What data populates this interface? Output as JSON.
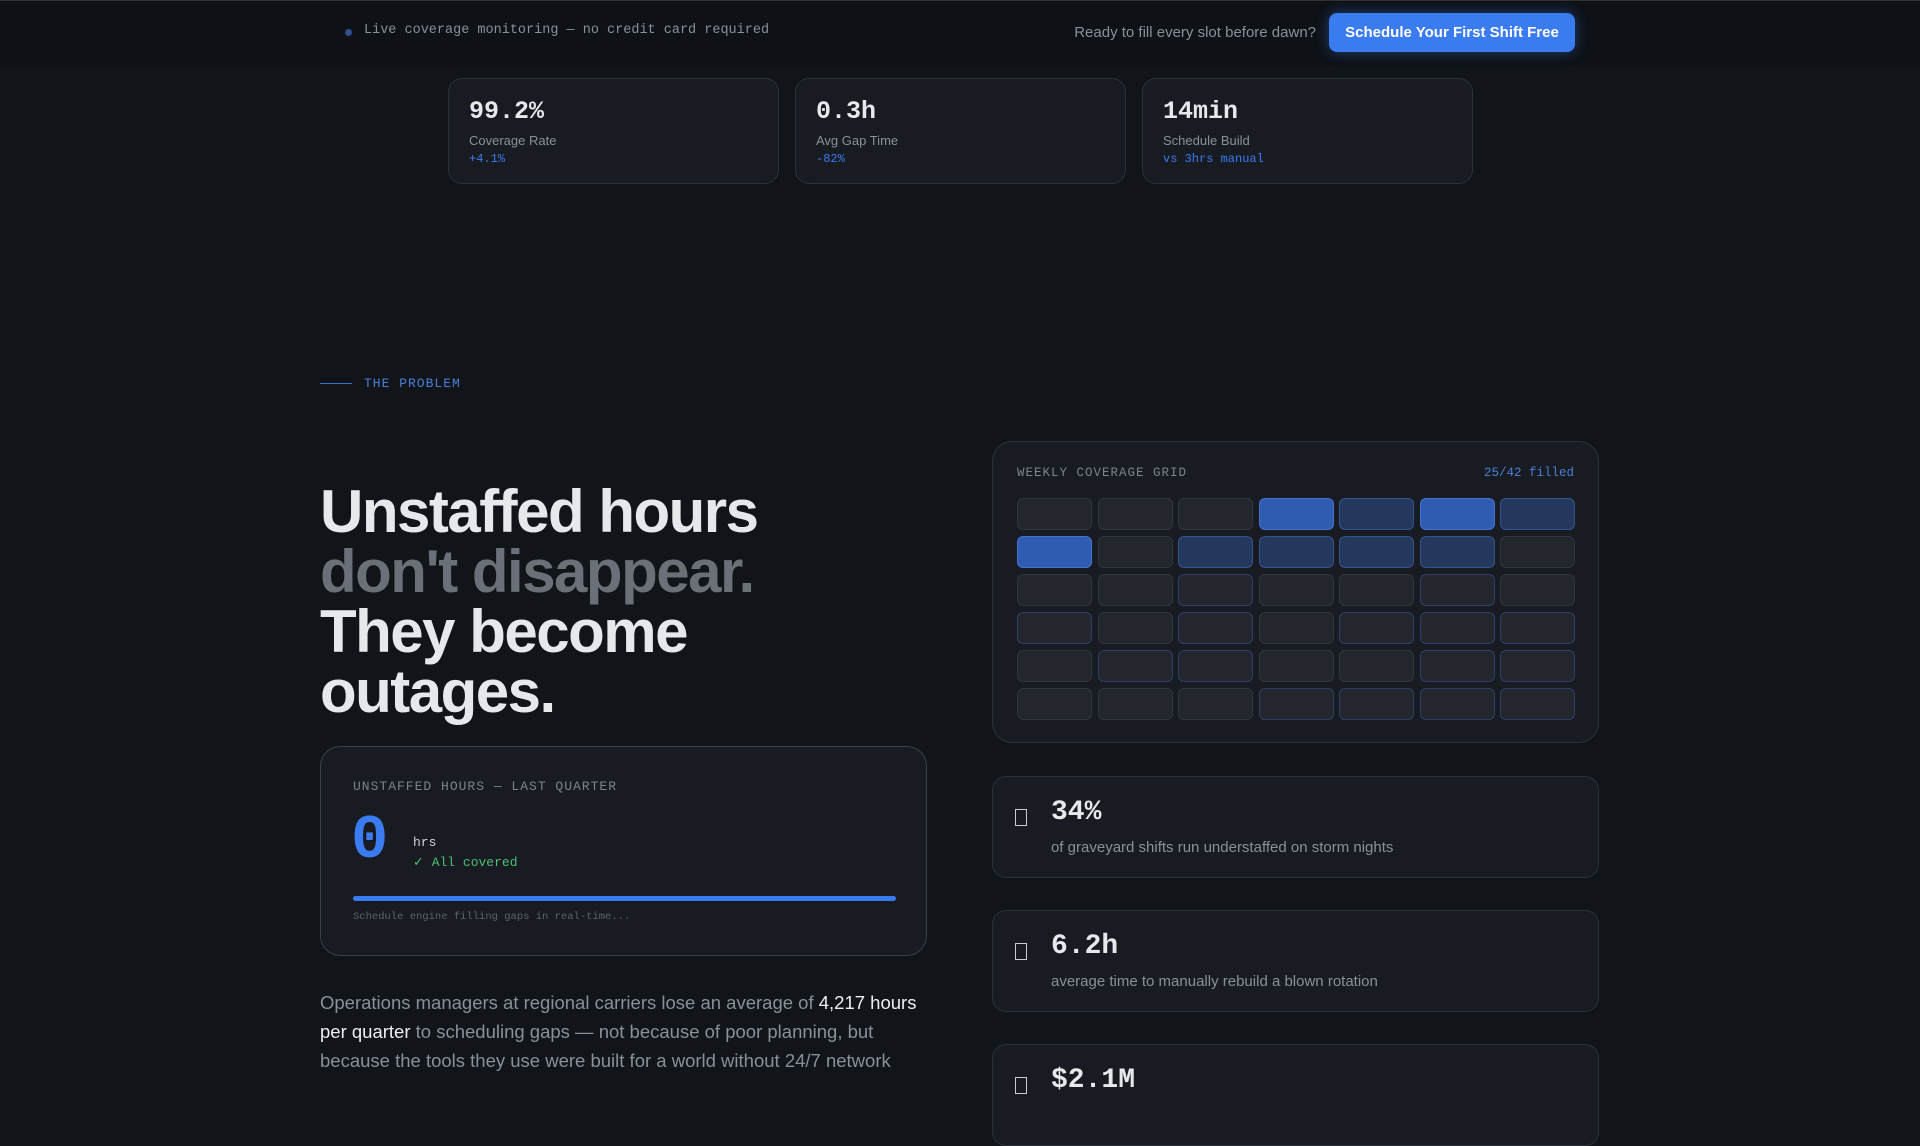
{
  "topbar": {
    "status": "Live coverage monitoring — no credit card required",
    "prompt": "Ready to fill every slot before dawn?",
    "button": "Schedule Your First Shift Free"
  },
  "stats": [
    {
      "value": "99.2%",
      "label": "Coverage Rate",
      "delta": "+4.1%"
    },
    {
      "value": "0.3h",
      "label": "Avg Gap Time",
      "delta": "-82%"
    },
    {
      "value": "14min",
      "label": "Schedule Build",
      "delta": "vs 3hrs manual"
    }
  ],
  "section": {
    "eyebrow": "THE PROBLEM",
    "headline": [
      "Unstaffed hours",
      "don't disappear.",
      "They become",
      "outages."
    ],
    "quarter_card": {
      "title": "UNSTAFFED HOURS — LAST QUARTER",
      "value": "0",
      "unit": "hrs",
      "status": "✓ All covered",
      "caption": "Schedule engine filling gaps in real-time..."
    },
    "paragraph": [
      "Operations managers at regional carriers lose an average of ",
      "4,217 hours per quarter",
      " to scheduling gaps — not because of poor planning, but because the tools they use were built for a world without 24/7 network"
    ],
    "grid_card": {
      "title": "WEEKLY COVERAGE GRID",
      "filled": "25/42 filled"
    },
    "facts": [
      {
        "value": "34%",
        "text": "of graveyard shifts run understaffed on storm nights"
      },
      {
        "value": "6.2h",
        "text": "average time to manually rebuild a blown rotation"
      },
      {
        "value": "$2.1M"
      }
    ]
  }
}
